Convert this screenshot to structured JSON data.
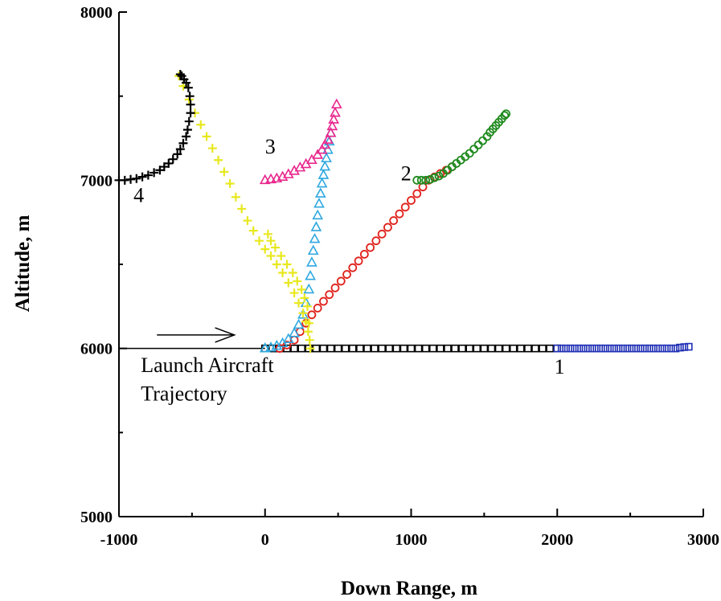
{
  "chart_data": {
    "type": "scatter",
    "xlabel": "Down Range, m",
    "ylabel": "Altitude, m",
    "xlim": [
      -1000,
      3000
    ],
    "ylim": [
      5000,
      8000
    ],
    "xticks": [
      -1000,
      0,
      1000,
      2000,
      3000
    ],
    "yticks": [
      5000,
      6000,
      7000,
      8000
    ],
    "xtick_labels": [
      "-1000",
      "0",
      "1000",
      "2000",
      "3000"
    ],
    "ytick_labels": [
      "5000",
      "6000",
      "7000",
      "8000"
    ],
    "grid": false,
    "annotations": [
      {
        "text": "1",
        "x": 1980,
        "y": 5850
      },
      {
        "text": "2",
        "x": 930,
        "y": 7000
      },
      {
        "text": "3",
        "x": 0,
        "y": 7160
      },
      {
        "text": "4",
        "x": -900,
        "y": 6870
      },
      {
        "text": "Launch Aircraft",
        "x": -850,
        "y": 5860
      },
      {
        "text": "Trajectory",
        "x": -850,
        "y": 5690
      }
    ],
    "launch_line": {
      "x": [
        -1000,
        0
      ],
      "y": [
        6000,
        6000
      ],
      "arrow_from": [
        -740,
        6080
      ],
      "arrow_to": [
        -210,
        6080
      ]
    },
    "series": [
      {
        "marker": "square",
        "color": "#000000",
        "x": [
          0,
          50,
          100,
          150,
          200,
          250,
          300,
          350,
          400,
          450,
          500,
          550,
          600,
          650,
          700,
          750,
          800,
          850,
          900,
          950,
          1000,
          1050,
          1100,
          1150,
          1200,
          1250,
          1300,
          1350,
          1400,
          1450,
          1500,
          1550,
          1600,
          1650,
          1700,
          1750,
          1800,
          1850,
          1900,
          1950,
          2000
        ],
        "y": [
          6000,
          6000,
          6000,
          6000,
          6000,
          6000,
          6000,
          6000,
          6000,
          6000,
          6000,
          6000,
          6000,
          6000,
          6000,
          6000,
          6000,
          6000,
          6000,
          6000,
          6000,
          6000,
          6000,
          6000,
          6000,
          6000,
          6000,
          6000,
          6000,
          6000,
          6000,
          6000,
          6000,
          6000,
          6000,
          6000,
          6000,
          6000,
          6000,
          6000,
          6000
        ]
      },
      {
        "marker": "square",
        "color": "#1f2fb4",
        "x": [
          2000,
          2030,
          2060,
          2090,
          2120,
          2150,
          2180,
          2210,
          2240,
          2270,
          2300,
          2330,
          2360,
          2390,
          2420,
          2450,
          2480,
          2510,
          2540,
          2570,
          2600,
          2630,
          2660,
          2690,
          2720,
          2750,
          2780,
          2810,
          2840,
          2870,
          2900
        ],
        "y": [
          6000,
          6000,
          6000,
          6000,
          6000,
          6000,
          6000,
          6000,
          6000,
          6000,
          6000,
          6000,
          6000,
          6000,
          6000,
          6000,
          6000,
          6000,
          6000,
          6000,
          6000,
          6000,
          6000,
          6000,
          6000,
          6000,
          6000,
          6000,
          6005,
          6008,
          6010
        ]
      },
      {
        "marker": "circle",
        "color": "#e0201a",
        "x": [
          100,
          150,
          200,
          240,
          280,
          320,
          360,
          400,
          440,
          480,
          520,
          560,
          600,
          640,
          680,
          720,
          760,
          800,
          840,
          880,
          920,
          960,
          1000,
          1040,
          1080,
          1120,
          1160,
          1200,
          1240,
          1280
        ],
        "y": [
          6000,
          6020,
          6050,
          6100,
          6150,
          6200,
          6240,
          6280,
          6320,
          6360,
          6400,
          6440,
          6480,
          6520,
          6560,
          6600,
          6640,
          6680,
          6720,
          6760,
          6800,
          6840,
          6880,
          6920,
          6960,
          7000,
          7020,
          7040,
          7060,
          7080
        ]
      },
      {
        "marker": "circle",
        "color": "#1f8a1f",
        "x": [
          1040,
          1070,
          1100,
          1130,
          1160,
          1190,
          1220,
          1250,
          1280,
          1310,
          1340,
          1370,
          1400,
          1430,
          1460,
          1490,
          1520,
          1540,
          1560,
          1580,
          1600,
          1620,
          1640,
          1650
        ],
        "y": [
          7000,
          7000,
          7000,
          7005,
          7015,
          7025,
          7040,
          7060,
          7080,
          7100,
          7120,
          7140,
          7160,
          7185,
          7210,
          7235,
          7260,
          7285,
          7305,
          7325,
          7345,
          7365,
          7385,
          7395
        ]
      },
      {
        "marker": "triangle",
        "color": "#2ea8e0",
        "x": [
          0,
          40,
          80,
          120,
          160,
          200,
          230,
          260,
          280,
          300,
          310,
          320,
          330,
          340,
          350,
          360,
          370,
          380,
          390,
          400,
          410,
          420,
          430,
          440,
          450
        ],
        "y": [
          6000,
          6005,
          6015,
          6030,
          6055,
          6090,
          6140,
          6200,
          6270,
          6350,
          6430,
          6510,
          6580,
          6650,
          6720,
          6790,
          6860,
          6920,
          6980,
          7030,
          7080,
          7130,
          7180,
          7230,
          7280
        ]
      },
      {
        "marker": "triangle",
        "color": "#e8268c",
        "x": [
          0,
          40,
          80,
          120,
          160,
          200,
          240,
          280,
          320,
          360,
          390,
          410,
          430,
          450,
          460,
          470,
          480,
          490
        ],
        "y": [
          7000,
          7005,
          7010,
          7020,
          7035,
          7055,
          7075,
          7095,
          7120,
          7150,
          7180,
          7210,
          7240,
          7280,
          7320,
          7360,
          7400,
          7450
        ]
      },
      {
        "marker": "plus",
        "color": "#e8e820",
        "x": [
          -590,
          -560,
          -520,
          -480,
          -440,
          -400,
          -360,
          -320,
          -280,
          -240,
          -200,
          -160,
          -120,
          -80,
          -40,
          0,
          40,
          80,
          120,
          160,
          200,
          230,
          260,
          280,
          295,
          305,
          310,
          300,
          290,
          270,
          250,
          220,
          190,
          150,
          110,
          70,
          40,
          20
        ],
        "y": [
          7620,
          7560,
          7480,
          7400,
          7330,
          7260,
          7190,
          7120,
          7050,
          6980,
          6900,
          6830,
          6760,
          6700,
          6640,
          6590,
          6550,
          6500,
          6450,
          6390,
          6330,
          6270,
          6210,
          6160,
          6100,
          6050,
          6000,
          6150,
          6250,
          6300,
          6350,
          6400,
          6450,
          6500,
          6550,
          6600,
          6640,
          6680
        ]
      },
      {
        "marker": "plus",
        "color": "#000000",
        "x": [
          -1000,
          -960,
          -920,
          -880,
          -840,
          -800,
          -760,
          -720,
          -690,
          -660,
          -630,
          -600,
          -580,
          -560,
          -540,
          -530,
          -520,
          -510,
          -510,
          -515,
          -525,
          -540,
          -555,
          -570,
          -580
        ],
        "y": [
          7000,
          7000,
          7005,
          7010,
          7020,
          7030,
          7045,
          7060,
          7080,
          7100,
          7125,
          7155,
          7185,
          7220,
          7260,
          7300,
          7350,
          7400,
          7450,
          7500,
          7550,
          7580,
          7600,
          7620,
          7630
        ]
      }
    ]
  }
}
